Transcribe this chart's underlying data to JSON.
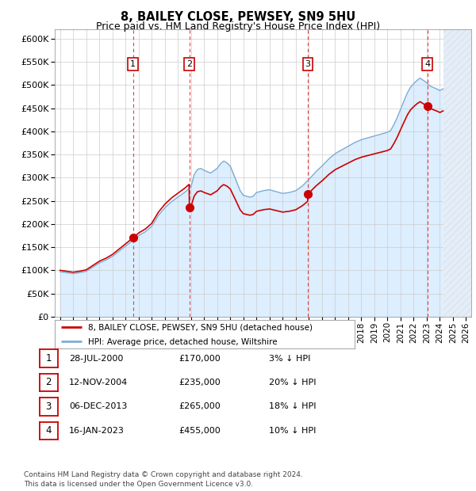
{
  "title1": "8, BAILEY CLOSE, PEWSEY, SN9 5HU",
  "title2": "Price paid vs. HM Land Registry's House Price Index (HPI)",
  "ylim": [
    0,
    620000
  ],
  "yticks": [
    0,
    50000,
    100000,
    150000,
    200000,
    250000,
    300000,
    350000,
    400000,
    450000,
    500000,
    550000,
    600000
  ],
  "xlim": [
    1994.6,
    2026.4
  ],
  "sales": [
    {
      "date": 2000.57,
      "price": 170000,
      "label": "1"
    },
    {
      "date": 2004.87,
      "price": 235000,
      "label": "2"
    },
    {
      "date": 2013.93,
      "price": 265000,
      "label": "3"
    },
    {
      "date": 2023.04,
      "price": 455000,
      "label": "4"
    }
  ],
  "sale_color": "#cc0000",
  "hpi_color": "#7dadd4",
  "vline_color": "#dd4444",
  "bg_fill_color": "#ddeeff",
  "plot_bg_color": "#ffffff",
  "hatch_color": "#ccddee",
  "legend_entries": [
    "8, BAILEY CLOSE, PEWSEY, SN9 5HU (detached house)",
    "HPI: Average price, detached house, Wiltshire"
  ],
  "table_rows": [
    {
      "num": "1",
      "date": "28-JUL-2000",
      "price": "£170,000",
      "pct": "3% ↓ HPI"
    },
    {
      "num": "2",
      "date": "12-NOV-2004",
      "price": "£235,000",
      "pct": "20% ↓ HPI"
    },
    {
      "num": "3",
      "date": "06-DEC-2013",
      "price": "£265,000",
      "pct": "18% ↓ HPI"
    },
    {
      "num": "4",
      "date": "16-JAN-2023",
      "price": "£455,000",
      "pct": "10% ↓ HPI"
    }
  ],
  "footnote": "Contains HM Land Registry data © Crown copyright and database right 2024.\nThis data is licensed under the Open Government Licence v3.0.",
  "hpi_knots_x": [
    1995.0,
    1995.5,
    1996.0,
    1996.5,
    1997.0,
    1997.5,
    1998.0,
    1998.5,
    1999.0,
    1999.5,
    2000.0,
    2000.5,
    2001.0,
    2001.5,
    2002.0,
    2002.5,
    2003.0,
    2003.5,
    2004.0,
    2004.5,
    2005.0,
    2005.25,
    2005.5,
    2005.75,
    2006.0,
    2006.5,
    2007.0,
    2007.25,
    2007.5,
    2007.75,
    2008.0,
    2008.25,
    2008.5,
    2008.75,
    2009.0,
    2009.25,
    2009.5,
    2009.75,
    2010.0,
    2010.5,
    2011.0,
    2011.5,
    2012.0,
    2012.5,
    2013.0,
    2013.5,
    2014.0,
    2014.5,
    2015.0,
    2015.5,
    2016.0,
    2016.5,
    2017.0,
    2017.5,
    2018.0,
    2018.5,
    2019.0,
    2019.5,
    2020.0,
    2020.25,
    2020.5,
    2020.75,
    2021.0,
    2021.25,
    2021.5,
    2021.75,
    2022.0,
    2022.25,
    2022.5,
    2022.75,
    2023.0,
    2023.25,
    2023.5,
    2023.75,
    2024.0,
    2024.25
  ],
  "hpi_knots_y": [
    97000,
    95000,
    93000,
    95000,
    98000,
    107000,
    116000,
    122000,
    130000,
    141000,
    152000,
    163000,
    175000,
    183000,
    195000,
    218000,
    235000,
    248000,
    258000,
    268000,
    280000,
    307000,
    318000,
    320000,
    316000,
    310000,
    320000,
    330000,
    336000,
    332000,
    325000,
    308000,
    290000,
    272000,
    262000,
    260000,
    258000,
    260000,
    268000,
    272000,
    274000,
    270000,
    266000,
    268000,
    272000,
    282000,
    296000,
    312000,
    325000,
    340000,
    352000,
    360000,
    368000,
    376000,
    382000,
    386000,
    390000,
    394000,
    398000,
    402000,
    415000,
    430000,
    448000,
    465000,
    482000,
    495000,
    503000,
    510000,
    515000,
    510000,
    505000,
    498000,
    495000,
    492000,
    488000,
    492000
  ]
}
